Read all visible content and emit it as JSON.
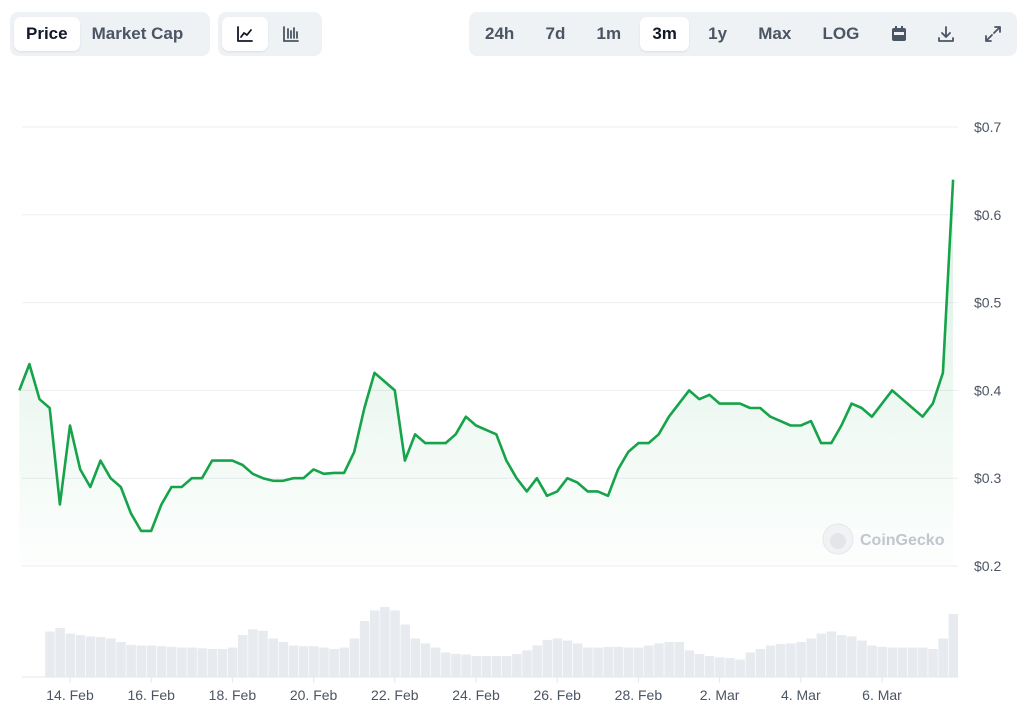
{
  "toolbar": {
    "metric_tabs": [
      {
        "label": "Price",
        "active": true
      },
      {
        "label": "Market Cap",
        "active": false
      }
    ],
    "chart_types": [
      {
        "icon": "line-chart-icon",
        "active": true
      },
      {
        "icon": "candlestick-chart-icon",
        "active": false
      }
    ],
    "ranges": [
      {
        "label": "24h",
        "active": false
      },
      {
        "label": "7d",
        "active": false
      },
      {
        "label": "1m",
        "active": false
      },
      {
        "label": "3m",
        "active": true
      },
      {
        "label": "1y",
        "active": false
      },
      {
        "label": "Max",
        "active": false
      },
      {
        "label": "LOG",
        "active": false
      }
    ],
    "tools": [
      {
        "icon": "calendar-icon"
      },
      {
        "icon": "download-icon"
      },
      {
        "icon": "expand-icon"
      }
    ]
  },
  "watermark": "CoinGecko",
  "colors": {
    "line": "#16a34a",
    "volume": "#e7eaef",
    "grid": "#eceef1",
    "toolbar_bg": "#eff2f5"
  },
  "chart_data": {
    "type": "line",
    "title": "",
    "xlabel": "",
    "ylabel": "",
    "ylim": [
      0.2,
      0.7
    ],
    "grid": true,
    "y_ticks": [
      "$0.7",
      "$0.6",
      "$0.5",
      "$0.4",
      "$0.3",
      "$0.2"
    ],
    "y_tick_values": [
      0.7,
      0.6,
      0.5,
      0.4,
      0.3,
      0.2
    ],
    "x_ticks": [
      "14. Feb",
      "16. Feb",
      "18. Feb",
      "20. Feb",
      "22. Feb",
      "24. Feb",
      "26. Feb",
      "28. Feb",
      "2. Mar",
      "4. Mar",
      "6. Mar"
    ],
    "x_tick_dates": [
      "14 Feb 00:00",
      "16 Feb 00:00",
      "18 Feb 00:00",
      "20 Feb 00:00",
      "22 Feb 00:00",
      "24 Feb 00:00",
      "26 Feb 00:00",
      "28 Feb 00:00",
      "2 Mar 00:00",
      "4 Mar 00:00",
      "6 Mar 00:00"
    ],
    "series": [
      {
        "fields": [
          "time",
          "price_usd",
          "volume_relative"
        ],
        "points": [
          [
            "12 Feb 18:00",
            0.4,
            null
          ],
          [
            "13 Feb 00:00",
            0.43,
            null
          ],
          [
            "13 Feb 06:00",
            0.39,
            null
          ],
          [
            "13 Feb 12:00",
            0.38,
            0.65
          ],
          [
            "13 Feb 18:00",
            0.27,
            0.7
          ],
          [
            "14 Feb 00:00",
            0.36,
            0.62
          ],
          [
            "14 Feb 06:00",
            0.31,
            0.6
          ],
          [
            "14 Feb 12:00",
            0.29,
            0.58
          ],
          [
            "14 Feb 18:00",
            0.32,
            0.57
          ],
          [
            "15 Feb 00:00",
            0.3,
            0.55
          ],
          [
            "15 Feb 06:00",
            0.29,
            0.5
          ],
          [
            "15 Feb 12:00",
            0.26,
            0.46
          ],
          [
            "15 Feb 18:00",
            0.24,
            0.45
          ],
          [
            "16 Feb 00:00",
            0.24,
            0.45
          ],
          [
            "16 Feb 06:00",
            0.27,
            0.44
          ],
          [
            "16 Feb 12:00",
            0.29,
            0.43
          ],
          [
            "16 Feb 18:00",
            0.29,
            0.42
          ],
          [
            "17 Feb 00:00",
            0.3,
            0.42
          ],
          [
            "17 Feb 06:00",
            0.3,
            0.41
          ],
          [
            "17 Feb 12:00",
            0.32,
            0.4
          ],
          [
            "17 Feb 18:00",
            0.32,
            0.4
          ],
          [
            "18 Feb 00:00",
            0.32,
            0.42
          ],
          [
            "18 Feb 06:00",
            0.315,
            0.6
          ],
          [
            "18 Feb 12:00",
            0.305,
            0.68
          ],
          [
            "18 Feb 18:00",
            0.3,
            0.66
          ],
          [
            "19 Feb 00:00",
            0.297,
            0.55
          ],
          [
            "19 Feb 06:00",
            0.297,
            0.5
          ],
          [
            "19 Feb 12:00",
            0.3,
            0.45
          ],
          [
            "19 Feb 18:00",
            0.3,
            0.44
          ],
          [
            "20 Feb 00:00",
            0.31,
            0.44
          ],
          [
            "20 Feb 06:00",
            0.305,
            0.42
          ],
          [
            "20 Feb 12:00",
            0.306,
            0.4
          ],
          [
            "20 Feb 18:00",
            0.306,
            0.42
          ],
          [
            "21 Feb 00:00",
            0.33,
            0.55
          ],
          [
            "21 Feb 06:00",
            0.38,
            0.8
          ],
          [
            "21 Feb 12:00",
            0.42,
            0.95
          ],
          [
            "21 Feb 18:00",
            0.41,
            1.0
          ],
          [
            "22 Feb 00:00",
            0.4,
            0.95
          ],
          [
            "22 Feb 06:00",
            0.32,
            0.75
          ],
          [
            "22 Feb 12:00",
            0.35,
            0.55
          ],
          [
            "22 Feb 18:00",
            0.34,
            0.48
          ],
          [
            "23 Feb 00:00",
            0.34,
            0.42
          ],
          [
            "23 Feb 06:00",
            0.34,
            0.35
          ],
          [
            "23 Feb 12:00",
            0.35,
            0.33
          ],
          [
            "23 Feb 18:00",
            0.37,
            0.32
          ],
          [
            "24 Feb 00:00",
            0.36,
            0.3
          ],
          [
            "24 Feb 06:00",
            0.355,
            0.3
          ],
          [
            "24 Feb 12:00",
            0.35,
            0.3
          ],
          [
            "24 Feb 18:00",
            0.32,
            0.3
          ],
          [
            "25 Feb 00:00",
            0.3,
            0.33
          ],
          [
            "25 Feb 06:00",
            0.285,
            0.38
          ],
          [
            "25 Feb 12:00",
            0.3,
            0.45
          ],
          [
            "25 Feb 18:00",
            0.28,
            0.53
          ],
          [
            "26 Feb 00:00",
            0.285,
            0.55
          ],
          [
            "26 Feb 06:00",
            0.3,
            0.52
          ],
          [
            "26 Feb 12:00",
            0.295,
            0.48
          ],
          [
            "26 Feb 18:00",
            0.285,
            0.42
          ],
          [
            "27 Feb 00:00",
            0.285,
            0.42
          ],
          [
            "27 Feb 06:00",
            0.28,
            0.43
          ],
          [
            "27 Feb 12:00",
            0.31,
            0.43
          ],
          [
            "27 Feb 18:00",
            0.33,
            0.42
          ],
          [
            "28 Feb 00:00",
            0.34,
            0.42
          ],
          [
            "28 Feb 06:00",
            0.34,
            0.45
          ],
          [
            "28 Feb 12:00",
            0.35,
            0.48
          ],
          [
            "28 Feb 18:00",
            0.37,
            0.5
          ],
          [
            "1 Mar 00:00",
            0.385,
            0.5
          ],
          [
            "1 Mar 06:00",
            0.4,
            0.38
          ],
          [
            "1 Mar 12:00",
            0.39,
            0.33
          ],
          [
            "1 Mar 18:00",
            0.395,
            0.3
          ],
          [
            "2 Mar 00:00",
            0.385,
            0.28
          ],
          [
            "2 Mar 06:00",
            0.385,
            0.27
          ],
          [
            "2 Mar 12:00",
            0.385,
            0.25
          ],
          [
            "2 Mar 18:00",
            0.38,
            0.35
          ],
          [
            "3 Mar 00:00",
            0.38,
            0.4
          ],
          [
            "3 Mar 06:00",
            0.37,
            0.45
          ],
          [
            "3 Mar 12:00",
            0.365,
            0.47
          ],
          [
            "3 Mar 18:00",
            0.36,
            0.48
          ],
          [
            "4 Mar 00:00",
            0.36,
            0.5
          ],
          [
            "4 Mar 06:00",
            0.365,
            0.55
          ],
          [
            "4 Mar 12:00",
            0.34,
            0.62
          ],
          [
            "4 Mar 18:00",
            0.34,
            0.65
          ],
          [
            "5 Mar 00:00",
            0.36,
            0.6
          ],
          [
            "5 Mar 06:00",
            0.385,
            0.58
          ],
          [
            "5 Mar 12:00",
            0.38,
            0.52
          ],
          [
            "5 Mar 18:00",
            0.37,
            0.45
          ],
          [
            "6 Mar 00:00",
            0.385,
            0.43
          ],
          [
            "6 Mar 06:00",
            0.4,
            0.42
          ],
          [
            "6 Mar 12:00",
            0.39,
            0.42
          ],
          [
            "6 Mar 18:00",
            0.38,
            0.42
          ],
          [
            "7 Mar 00:00",
            0.37,
            0.42
          ],
          [
            "7 Mar 06:00",
            0.385,
            0.4
          ],
          [
            "7 Mar 12:00",
            0.42,
            0.55
          ],
          [
            "7 Mar 18:00",
            0.64,
            0.9
          ]
        ]
      }
    ]
  }
}
